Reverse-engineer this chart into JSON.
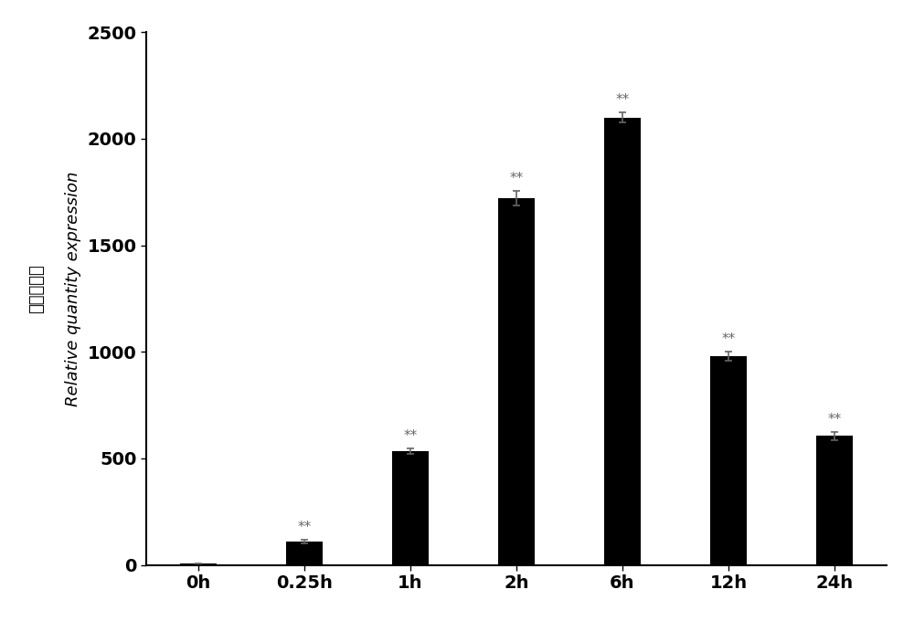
{
  "categories": [
    "0h",
    "0.25h",
    "1h",
    "2h",
    "6h",
    "12h",
    "24h"
  ],
  "values": [
    5,
    110,
    535,
    1720,
    2100,
    980,
    605
  ],
  "errors": [
    2,
    8,
    12,
    35,
    25,
    20,
    18
  ],
  "bar_color": "#000000",
  "background_color": "#ffffff",
  "ylabel_chinese": "相对表达量",
  "ylabel_english": "Relative quantity expression",
  "ylim": [
    0,
    2500
  ],
  "yticks": [
    0,
    500,
    1000,
    1500,
    2000,
    2500
  ],
  "significance": [
    "",
    "**",
    "**",
    "**",
    "**",
    "**",
    "**"
  ],
  "bar_width": 0.35,
  "tick_fontsize": 14,
  "label_fontsize": 13,
  "sig_fontsize": 11,
  "sig_color": "#666666",
  "error_color": "#666666"
}
